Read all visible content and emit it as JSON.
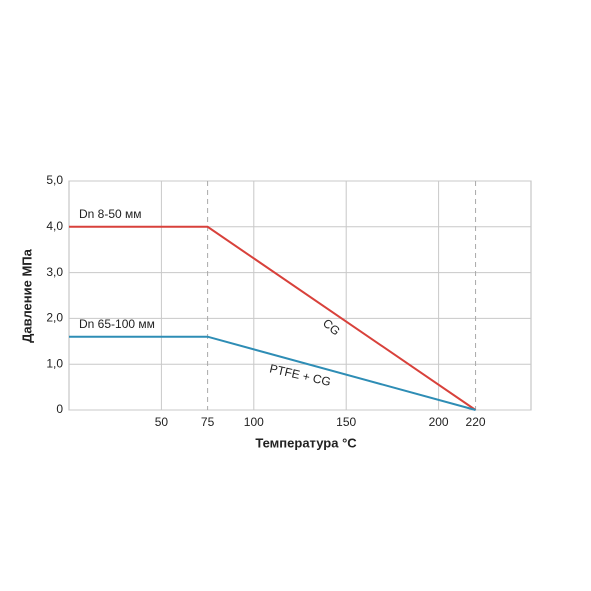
{
  "chart_data": {
    "type": "line",
    "x_label": "Температура °C",
    "y_label": "Давление МПа",
    "xlim": [
      0,
      250
    ],
    "xticks": [
      50,
      75,
      100,
      150,
      200,
      220
    ],
    "ylim": [
      0,
      5
    ],
    "yticks": [
      0,
      {
        "value": 1,
        "label": "1,0"
      },
      {
        "value": 2,
        "label": "2,0"
      },
      {
        "value": 3,
        "label": "3,0"
      },
      {
        "value": 4,
        "label": "4,0"
      },
      {
        "value": 5,
        "label": "5,0"
      }
    ],
    "grid": true,
    "series": [
      {
        "name": "Dn 8-50 мм",
        "color": "#d8413b",
        "x": [
          0,
          75,
          220
        ],
        "values": [
          4.0,
          4.0,
          0
        ]
      },
      {
        "name": "Dn 65-100 мм",
        "color": "#2e8db5",
        "x": [
          0,
          75,
          220
        ],
        "values": [
          1.6,
          1.6,
          0
        ]
      }
    ],
    "annotations": [
      "CG",
      "PTFE + CG"
    ]
  }
}
